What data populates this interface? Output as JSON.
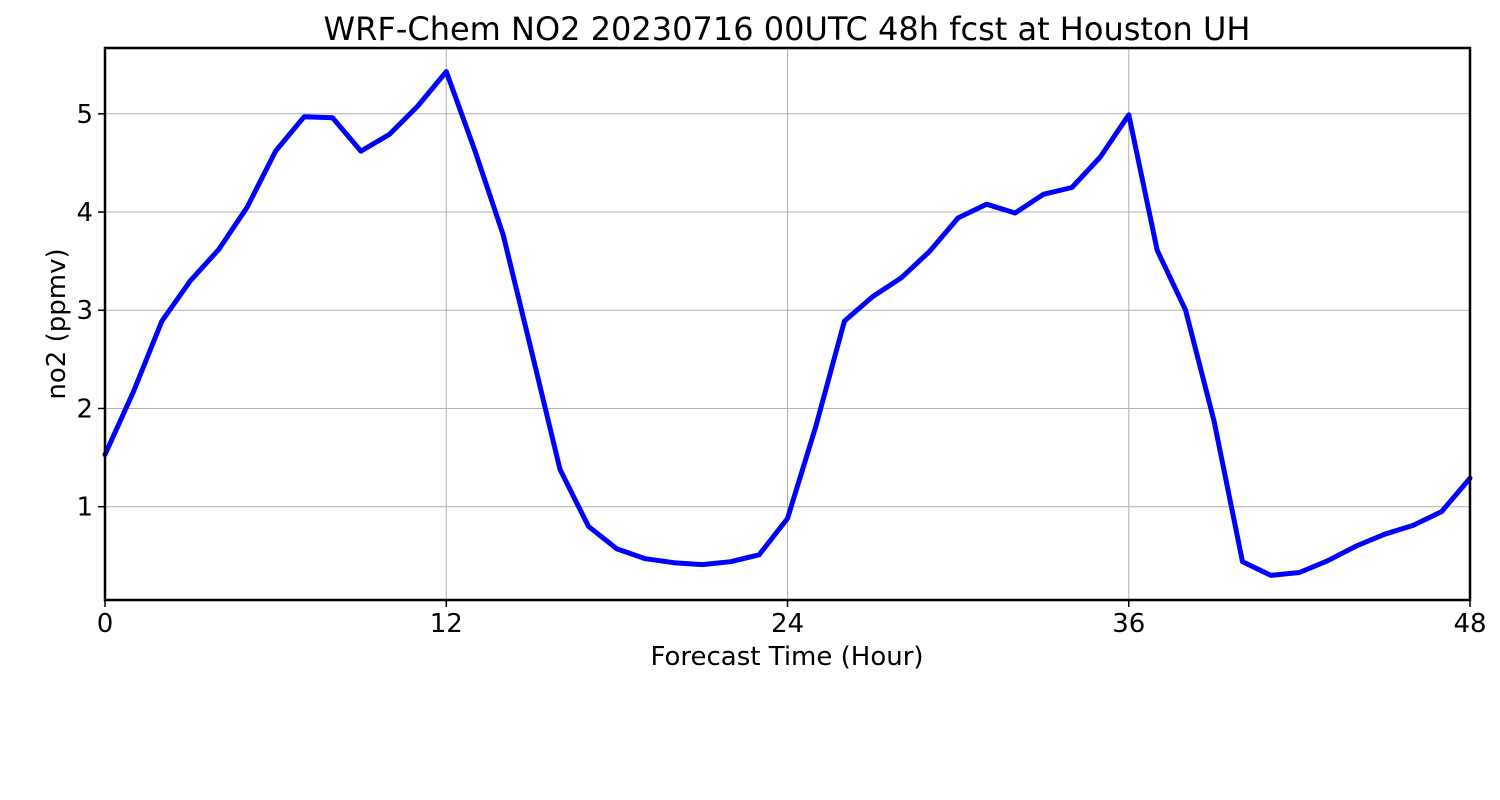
{
  "chart_data": {
    "type": "line",
    "title": "WRF-Chem NO2  20230716 00UTC 48h fcst at Houston UH",
    "xlabel": "Forecast Time (Hour)",
    "ylabel": "no2  (ppmv)",
    "xlim": [
      0,
      48
    ],
    "ylim": [
      0.05,
      5.67
    ],
    "xticks": [
      0,
      12,
      24,
      36,
      48
    ],
    "yticks": [
      1,
      2,
      3,
      4,
      5
    ],
    "grid": true,
    "legend": "none",
    "series": [
      {
        "color": "#0000ff",
        "x": [
          0,
          1,
          2,
          3,
          4,
          5,
          6,
          7,
          8,
          9,
          10,
          11,
          12,
          13,
          14,
          15,
          16,
          17,
          18,
          19,
          20,
          21,
          22,
          23,
          24,
          25,
          26,
          27,
          28,
          29,
          30,
          31,
          32,
          33,
          34,
          35,
          36,
          37,
          38,
          39,
          40,
          41,
          42,
          43,
          44,
          45,
          46,
          47,
          48
        ],
        "values": [
          1.53,
          2.17,
          2.89,
          3.3,
          3.62,
          4.05,
          4.62,
          4.97,
          4.96,
          4.62,
          4.79,
          5.08,
          5.43,
          4.63,
          3.77,
          2.58,
          1.38,
          0.8,
          0.57,
          0.47,
          0.43,
          0.41,
          0.44,
          0.51,
          0.88,
          1.82,
          2.89,
          3.14,
          3.33,
          3.6,
          3.94,
          4.08,
          3.99,
          4.18,
          4.25,
          4.56,
          4.99,
          3.61,
          3.0,
          1.87,
          0.44,
          0.3,
          0.33,
          0.45,
          0.6,
          0.72,
          0.81,
          0.95,
          1.29
        ]
      }
    ]
  }
}
